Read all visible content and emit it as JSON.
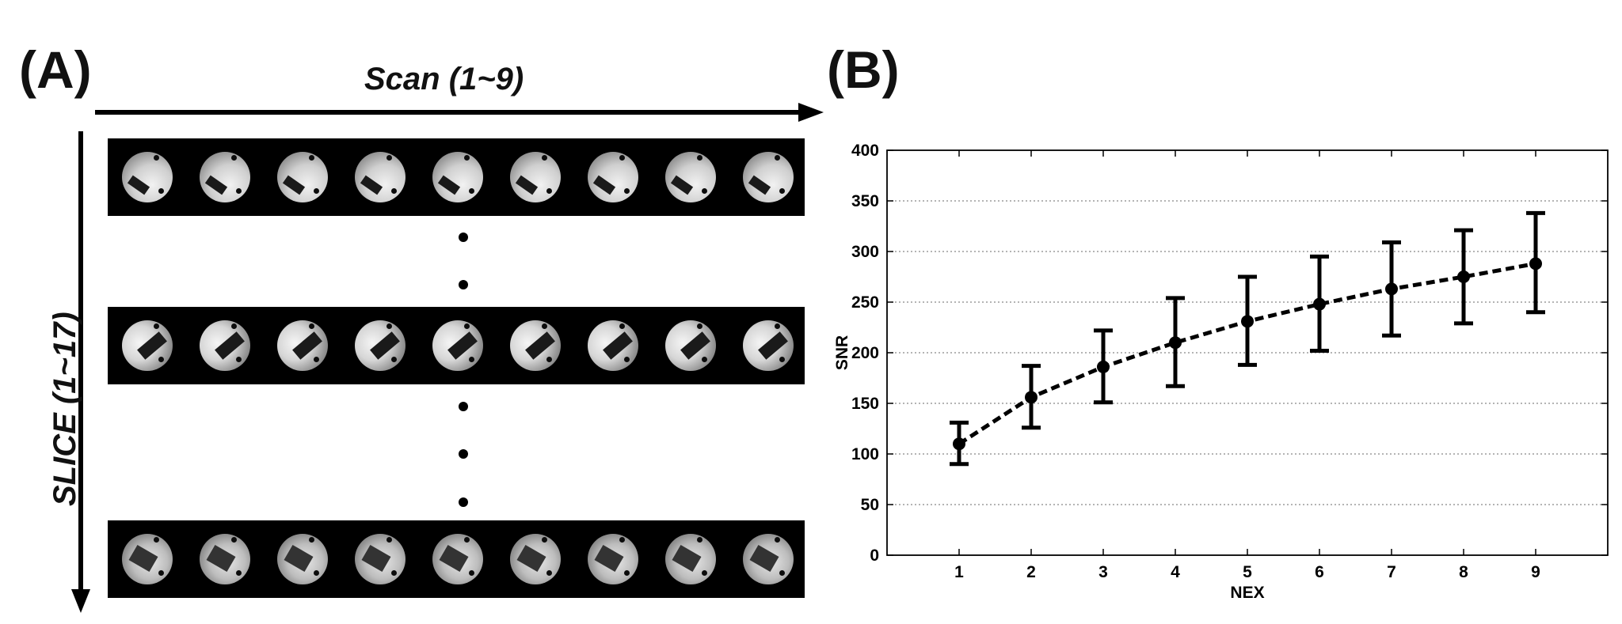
{
  "panels": {
    "a_label": "(A)",
    "b_label": "(B)"
  },
  "image_grid": {
    "x_axis_title": "Scan (1~9)",
    "y_axis_title": "SLICE (1~17)",
    "rows": [
      {
        "style": "top-slice",
        "count": 9
      },
      {
        "style": "mid-slice",
        "count": 9
      },
      {
        "style": "bottom-slice",
        "count": 9
      }
    ]
  },
  "chart_data": {
    "type": "line",
    "title": "",
    "xlabel": "NEX",
    "ylabel": "SNR",
    "x": [
      1,
      2,
      3,
      4,
      5,
      6,
      7,
      8,
      9
    ],
    "series": [
      {
        "values": [
          110,
          156,
          186,
          210,
          231,
          248,
          263,
          275,
          288
        ],
        "error_low": [
          90,
          126,
          151,
          167,
          188,
          202,
          217,
          229,
          240
        ],
        "error_high": [
          131,
          187,
          222,
          254,
          275,
          295,
          309,
          321,
          338
        ],
        "line_style": "dashed",
        "color": "#000000"
      }
    ],
    "xlim": [
      0,
      10
    ],
    "ylim": [
      0,
      400
    ],
    "xticks": [
      "1",
      "2",
      "3",
      "4",
      "5",
      "6",
      "7",
      "8",
      "9"
    ],
    "yticks": [
      "0",
      "50",
      "100",
      "150",
      "200",
      "250",
      "300",
      "350",
      "400"
    ],
    "grid": "horizontal-dotted",
    "legend": "none"
  }
}
